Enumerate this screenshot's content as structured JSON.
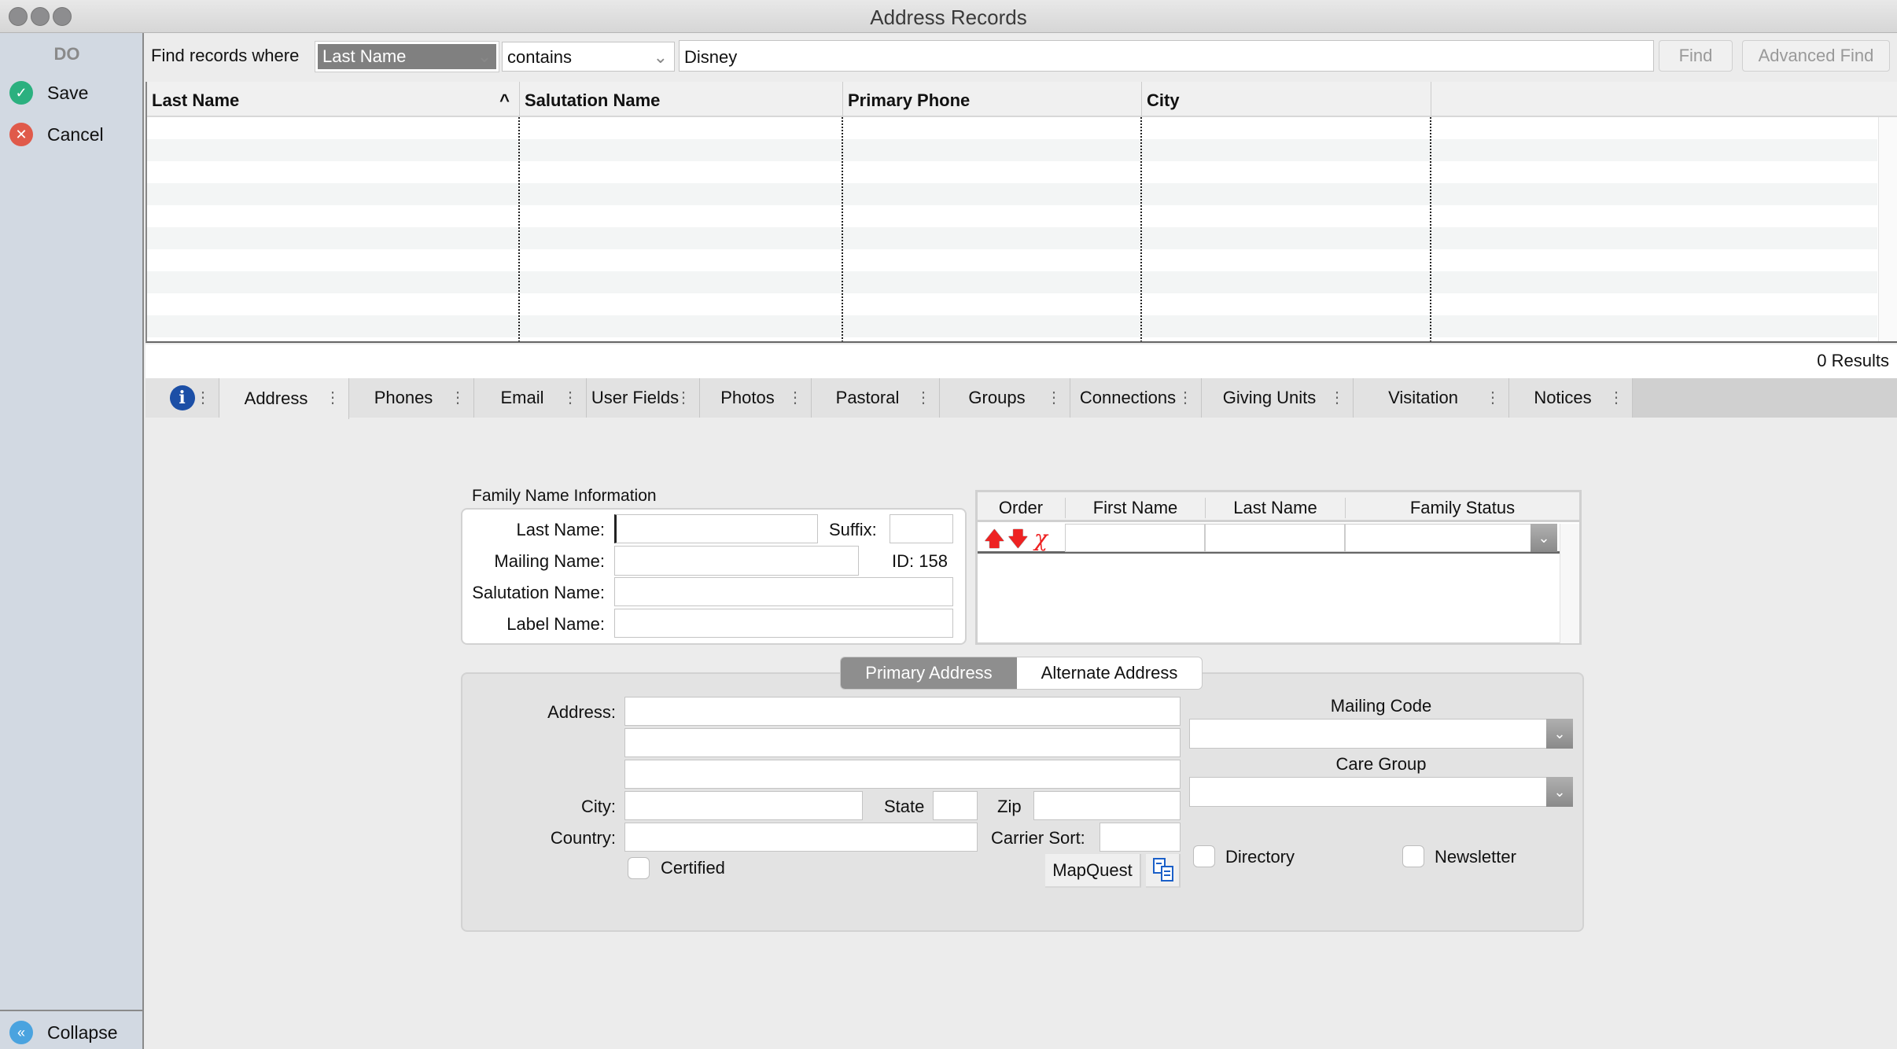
{
  "window": {
    "title": "Address Records"
  },
  "sidebar": {
    "header": "DO",
    "save": "Save",
    "cancel": "Cancel",
    "collapse": "Collapse"
  },
  "find": {
    "label": "Find records where",
    "field": "Last Name",
    "operator": "contains",
    "value": "Disney",
    "find_button": "Find",
    "advanced_button": "Advanced Find"
  },
  "grid": {
    "columns": [
      "Last Name",
      "Salutation Name",
      "Primary Phone",
      "City"
    ],
    "sort_indicator": "^",
    "rows": []
  },
  "results": "0 Results",
  "tabs": [
    "Address",
    "Phones",
    "Email",
    "User Fields",
    "Photos",
    "Pastoral",
    "Groups",
    "Connections",
    "Giving Units",
    "Visitation",
    "Notices"
  ],
  "family": {
    "section_title": "Family Name Information",
    "last_name_label": "Last Name:",
    "last_name": "",
    "suffix_label": "Suffix:",
    "suffix": "",
    "mailing_name_label": "Mailing Name:",
    "mailing_name": "",
    "id_text": "ID: 158",
    "salutation_label": "Salutation Name:",
    "salutation": "",
    "label_name_label": "Label Name:",
    "label_name": ""
  },
  "members": {
    "columns": [
      "Order",
      "First Name",
      "Last Name",
      "Family Status"
    ]
  },
  "address": {
    "primary_tab": "Primary Address",
    "alternate_tab": "Alternate Address",
    "address_label": "Address:",
    "city_label": "City:",
    "state_label": "State",
    "zip_label": "Zip",
    "country_label": "Country:",
    "carrier_label": "Carrier Sort:",
    "certified": "Certified",
    "certified_checked": false,
    "mapquest": "MapQuest",
    "mailing_code_label": "Mailing Code",
    "care_group_label": "Care Group",
    "directory": "Directory",
    "directory_checked": false,
    "newsletter": "Newsletter",
    "newsletter_checked": false
  },
  "colors": {
    "save": "#2bb07f",
    "cancel": "#e05a4a",
    "collapse": "#4aa3df",
    "selected_tab": "#8e8e8e",
    "info": "#1c4fa6"
  }
}
